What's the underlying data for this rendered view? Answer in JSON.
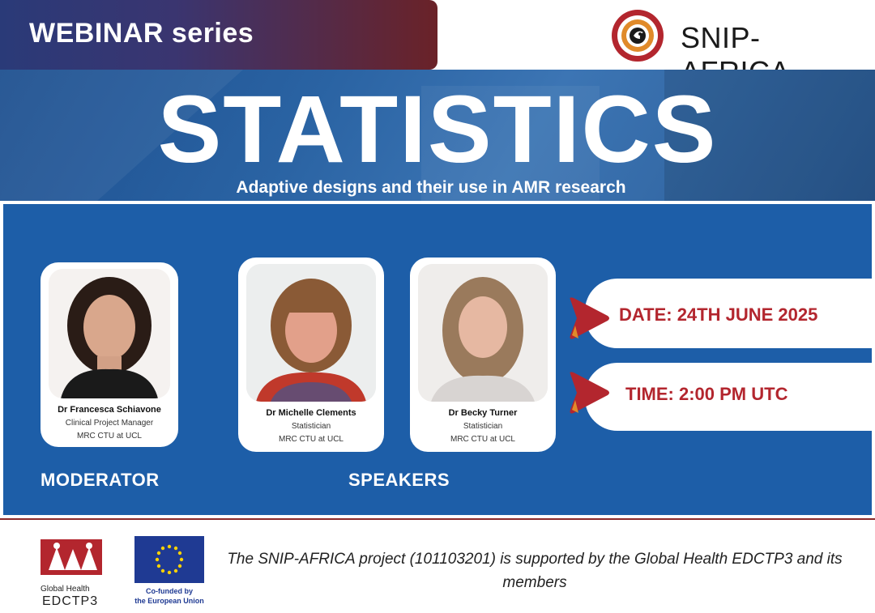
{
  "header": {
    "series_label": "WEBINAR series",
    "brand_name": "SNIP-AFRICA"
  },
  "hero": {
    "title": "STATISTICS",
    "subtitle": "Adaptive designs and their use in AMR research"
  },
  "moderator": {
    "name": "Dr Francesca Schiavone",
    "role": "Clinical Project Manager",
    "affiliation": "MRC CTU at UCL"
  },
  "speakers": [
    {
      "name": "Dr Michelle Clements",
      "role": "Statistician",
      "affiliation": "MRC CTU at UCL"
    },
    {
      "name": "Dr Becky Turner",
      "role": "Statistician",
      "affiliation": "MRC CTU at UCL"
    }
  ],
  "labels": {
    "moderator": "MODERATOR",
    "speakers": "SPEAKERS"
  },
  "event": {
    "date": "DATE: 24TH JUNE 2025",
    "time": "TIME: 2:00 PM UTC"
  },
  "footer": {
    "edctp_small": "Global Health",
    "edctp_big": "EDCTP3",
    "eu_line1": "Co-funded by",
    "eu_line2": "the European Union",
    "support_text": "The SNIP-AFRICA project (101103201) is supported by the Global Health EDCTP3 and its members"
  },
  "colors": {
    "panel_blue": "#1d5ea8",
    "accent_red": "#b3262e",
    "eu_blue": "#1f3a93"
  }
}
